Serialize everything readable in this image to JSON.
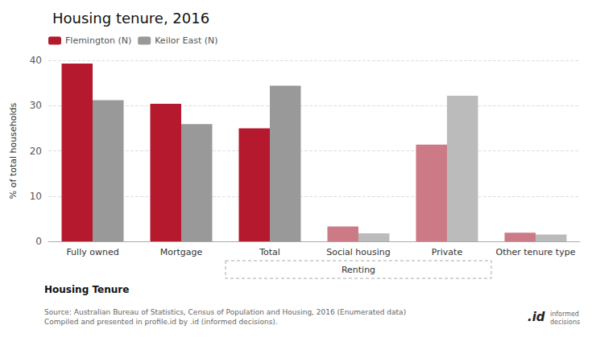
{
  "chart_data": {
    "type": "bar",
    "title": "Housing tenure, 2016",
    "ylabel": "% of total households",
    "xlabel": "Housing Tenure",
    "categories": [
      "Fully owned",
      "Mortgage",
      "Total",
      "Social housing",
      "Private",
      "Other tenure type"
    ],
    "series": [
      {
        "name": "Flemington (N)",
        "color": "#b5192d",
        "colors": [
          "#b5192d",
          "#b5192d",
          "#b5192d",
          "#cc7a85",
          "#cc7a85",
          "#cc7a85"
        ],
        "values": [
          39.3,
          30.4,
          25.0,
          3.3,
          21.4,
          1.9
        ]
      },
      {
        "name": "Keilor East (N)",
        "color": "#999999",
        "colors": [
          "#999999",
          "#999999",
          "#999999",
          "#bbbbbb",
          "#bbbbbb",
          "#bbbbbb"
        ],
        "values": [
          31.2,
          25.9,
          34.4,
          1.8,
          32.2,
          1.5
        ]
      }
    ],
    "ylim": [
      0,
      40
    ],
    "yticks": [
      0,
      10,
      20,
      30,
      40
    ],
    "grid": true,
    "legend": "upper left",
    "annotations": [
      {
        "text": "Renting",
        "from": "Total",
        "to": "Private"
      }
    ],
    "source": "Source: Australian Bureau of Statistics, Census of Population and Housing, 2016 (Enumerated data)\nCompiled and presented in profile.id by .id (informed decisions).",
    "logo": [
      ".id",
      "informed\ndecisions"
    ]
  }
}
